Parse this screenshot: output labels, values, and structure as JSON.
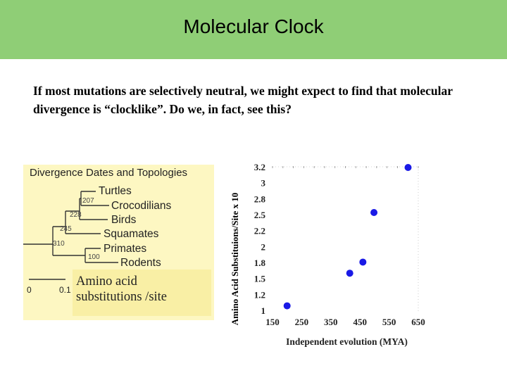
{
  "header": {
    "title": "Molecular Clock"
  },
  "intro": {
    "text": "If most mutations are selectively neutral, we might expect to find that molecular divergence is “clocklike”.  Do we, in fact, see this?"
  },
  "tree": {
    "title": "Divergence Dates and Topologies",
    "taxa": [
      "Turtles",
      "Crocodilians",
      "Birds",
      "Squamates",
      "Primates",
      "Rodents"
    ],
    "node_labels": [
      "207",
      "228",
      "245",
      "310",
      "100"
    ],
    "scale": {
      "start": "0",
      "end": "0.1"
    },
    "legend": {
      "line1": "Amino acid",
      "line2": "substitutions /site"
    }
  },
  "chart_data": {
    "type": "scatter",
    "title": "",
    "xlabel": "Independent evolution (MYA)",
    "ylabel": "Amino Acid Substituions/Site   x 10",
    "xlim": [
      150,
      650
    ],
    "ylim": [
      1,
      3.2
    ],
    "x_ticks": [
      "150",
      "250",
      "350",
      "450",
      "550",
      "650"
    ],
    "y_ticks": [
      "1",
      "1.2",
      "1.5",
      "1.8",
      "2",
      "2.2",
      "2.5",
      "2.8",
      "3",
      "3.2"
    ],
    "points": [
      {
        "x": 200,
        "y": 1.08
      },
      {
        "x": 415,
        "y": 1.58
      },
      {
        "x": 460,
        "y": 1.75
      },
      {
        "x": 498,
        "y": 2.51
      },
      {
        "x": 615,
        "y": 3.2
      }
    ],
    "marker_color": "#1a1ae6",
    "grid": false
  }
}
